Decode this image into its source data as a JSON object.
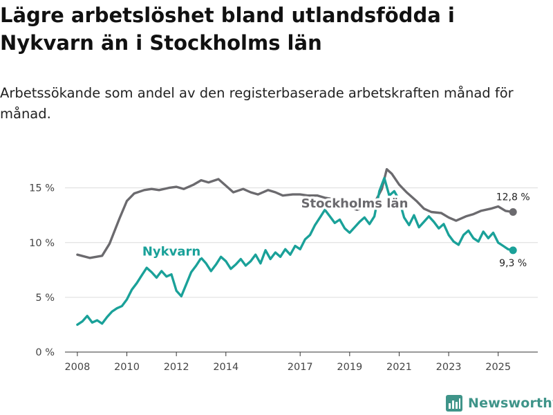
{
  "header": {
    "title": "Lägre arbetslöshet bland utlandsfödda i Nykvarn än i Stockholms län",
    "subtitle": "Arbetssökande som andel av den registerbaserade arbetskraften månad för månad."
  },
  "branding": {
    "name": "Newsworthy"
  },
  "colors": {
    "stockholm": "#6b6a6e",
    "nykvarn": "#1aa199",
    "grid": "#dcdcdc",
    "axis": "#444444",
    "brand": "#3f9489"
  },
  "chart_data": {
    "type": "line",
    "title": "Lägre arbetslöshet bland utlandsfödda i Nykvarn än i Stockholms län",
    "subtitle": "Arbetssökande som andel av den registerbaserade arbetskraften månad för månad.",
    "xlabel": "",
    "ylabel": "",
    "xlim": [
      2007.5,
      2026.6
    ],
    "ylim": [
      0,
      17
    ],
    "x_ticks": [
      2008,
      2010,
      2012,
      2014,
      2017,
      2019,
      2021,
      2023,
      2025
    ],
    "x_tick_labels": [
      "2008",
      "2010",
      "2012",
      "2014",
      "2017",
      "2019",
      "2021",
      "2023",
      "2025"
    ],
    "y_ticks": [
      0,
      5,
      10,
      15
    ],
    "y_tick_labels": [
      "0 %",
      "5 %",
      "10 %",
      "15 %"
    ],
    "grid": true,
    "series": [
      {
        "name": "Stockholms län",
        "label": "Stockholms län",
        "end_label": "12,8 %",
        "x": [
          2008.0,
          2008.5,
          2009.0,
          2009.3,
          2009.7,
          2010.0,
          2010.3,
          2010.7,
          2011.0,
          2011.3,
          2011.7,
          2012.0,
          2012.3,
          2012.7,
          2013.0,
          2013.3,
          2013.7,
          2014.0,
          2014.3,
          2014.7,
          2015.0,
          2015.3,
          2015.7,
          2016.0,
          2016.3,
          2016.7,
          2017.0,
          2017.3,
          2017.7,
          2018.0,
          2018.3,
          2018.7,
          2019.0,
          2019.3,
          2019.7,
          2020.0,
          2020.3,
          2020.5,
          2020.7,
          2021.0,
          2021.3,
          2021.7,
          2022.0,
          2022.3,
          2022.7,
          2023.0,
          2023.3,
          2023.7,
          2024.0,
          2024.3,
          2024.7,
          2025.0,
          2025.3,
          2025.6
        ],
        "values": [
          8.9,
          8.6,
          8.8,
          9.9,
          12.2,
          13.8,
          14.5,
          14.8,
          14.9,
          14.8,
          15.0,
          15.1,
          14.9,
          15.3,
          15.7,
          15.5,
          15.8,
          15.2,
          14.6,
          14.9,
          14.6,
          14.4,
          14.8,
          14.6,
          14.3,
          14.4,
          14.4,
          14.3,
          14.3,
          14.1,
          14.0,
          13.8,
          13.2,
          13.0,
          13.3,
          13.6,
          14.9,
          16.7,
          16.3,
          15.3,
          14.6,
          13.8,
          13.1,
          12.8,
          12.7,
          12.3,
          12.0,
          12.4,
          12.6,
          12.9,
          13.1,
          13.3,
          12.9,
          12.8
        ]
      },
      {
        "name": "Nykvarn",
        "label": "Nykvarn",
        "end_label": "9,3 %",
        "x": [
          2008.0,
          2008.2,
          2008.4,
          2008.6,
          2008.8,
          2009.0,
          2009.2,
          2009.4,
          2009.6,
          2009.8,
          2010.0,
          2010.2,
          2010.4,
          2010.6,
          2010.8,
          2011.0,
          2011.2,
          2011.4,
          2011.6,
          2011.8,
          2012.0,
          2012.2,
          2012.4,
          2012.6,
          2012.8,
          2013.0,
          2013.2,
          2013.4,
          2013.6,
          2013.8,
          2014.0,
          2014.2,
          2014.4,
          2014.6,
          2014.8,
          2015.0,
          2015.2,
          2015.4,
          2015.6,
          2015.8,
          2016.0,
          2016.2,
          2016.4,
          2016.6,
          2016.8,
          2017.0,
          2017.2,
          2017.4,
          2017.6,
          2017.8,
          2018.0,
          2018.2,
          2018.4,
          2018.6,
          2018.8,
          2019.0,
          2019.2,
          2019.4,
          2019.6,
          2019.8,
          2020.0,
          2020.2,
          2020.4,
          2020.6,
          2020.8,
          2021.0,
          2021.2,
          2021.4,
          2021.6,
          2021.8,
          2022.0,
          2022.2,
          2022.4,
          2022.6,
          2022.8,
          2023.0,
          2023.2,
          2023.4,
          2023.6,
          2023.8,
          2024.0,
          2024.2,
          2024.4,
          2024.6,
          2024.8,
          2025.0,
          2025.2,
          2025.4,
          2025.6
        ],
        "values": [
          2.5,
          2.8,
          3.3,
          2.7,
          2.9,
          2.6,
          3.2,
          3.7,
          4.0,
          4.2,
          4.8,
          5.7,
          6.3,
          7.0,
          7.7,
          7.3,
          6.8,
          7.4,
          6.9,
          7.1,
          5.6,
          5.1,
          6.2,
          7.3,
          7.9,
          8.6,
          8.1,
          7.4,
          8.0,
          8.7,
          8.3,
          7.6,
          8.0,
          8.5,
          7.9,
          8.3,
          8.9,
          8.1,
          9.3,
          8.5,
          9.1,
          8.7,
          9.4,
          8.9,
          9.7,
          9.4,
          10.3,
          10.7,
          11.6,
          12.3,
          13.0,
          12.4,
          11.8,
          12.1,
          11.3,
          10.9,
          11.4,
          11.9,
          12.3,
          11.7,
          12.4,
          14.7,
          15.9,
          14.3,
          14.7,
          13.9,
          12.3,
          11.6,
          12.5,
          11.4,
          11.9,
          12.4,
          11.9,
          11.3,
          11.7,
          10.7,
          10.1,
          9.8,
          10.7,
          11.1,
          10.4,
          10.1,
          11.0,
          10.4,
          10.9,
          10.0,
          9.7,
          9.4,
          9.3
        ]
      }
    ]
  }
}
